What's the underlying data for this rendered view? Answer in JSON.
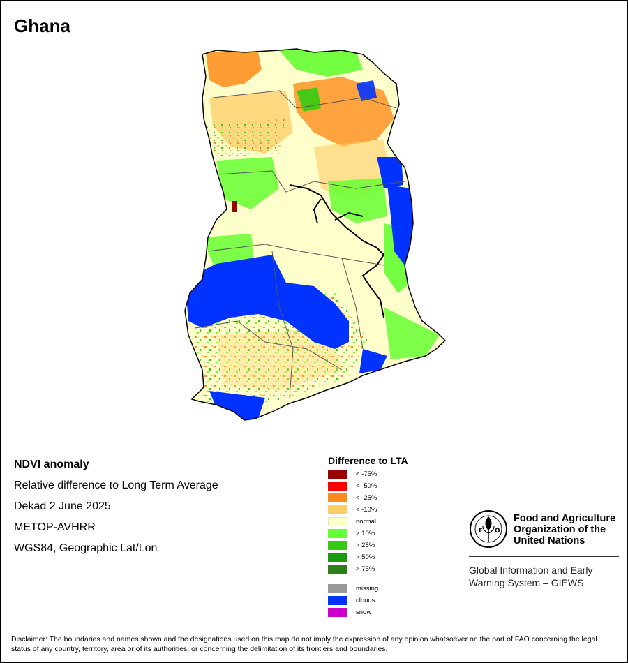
{
  "map": {
    "title": "Ghana"
  },
  "info": {
    "layer_name": "NDVI anomaly",
    "description": "Relative difference to Long Term Average",
    "period": "Dekad 2 June 2025",
    "sensor": "METOP-AVHRR",
    "projection": "WGS84, Geographic Lat/Lon"
  },
  "legend": {
    "title": "Difference to LTA",
    "classes": [
      {
        "label": "< -75%",
        "color": "#990000"
      },
      {
        "label": "< -50%",
        "color": "#ff0000"
      },
      {
        "label": "< -25%",
        "color": "#ff8c1a"
      },
      {
        "label": "< -10%",
        "color": "#ffcc66"
      },
      {
        "label": "normal",
        "color": "#ffffcc"
      },
      {
        "label": "> 10%",
        "color": "#66ff33"
      },
      {
        "label": "> 25%",
        "color": "#33cc11"
      },
      {
        "label": "> 50%",
        "color": "#1a9910"
      },
      {
        "label": "> 75%",
        "color": "#2e7d1a"
      }
    ],
    "extra_classes": [
      {
        "label": "missing",
        "color": "#999999"
      },
      {
        "label": "clouds",
        "color": "#0033ff"
      },
      {
        "label": "snow",
        "color": "#cc00cc"
      }
    ]
  },
  "org": {
    "name": "Food and Agriculture\nOrganization of the\nUnited Nations",
    "logo_text": "FAO",
    "logo_motto": "FIAT PANIS",
    "system": "Global Information and Early\nWarning System – GIEWS"
  },
  "disclaimer": "Disclaimer: The boundaries and names shown and the designations used on this map do not imply the expression of any opinion whatsoever on the part of FAO concerning the legal status of any country, territory, area or of its authorities, or concerning the delimitation of its frontiers and boundaries."
}
